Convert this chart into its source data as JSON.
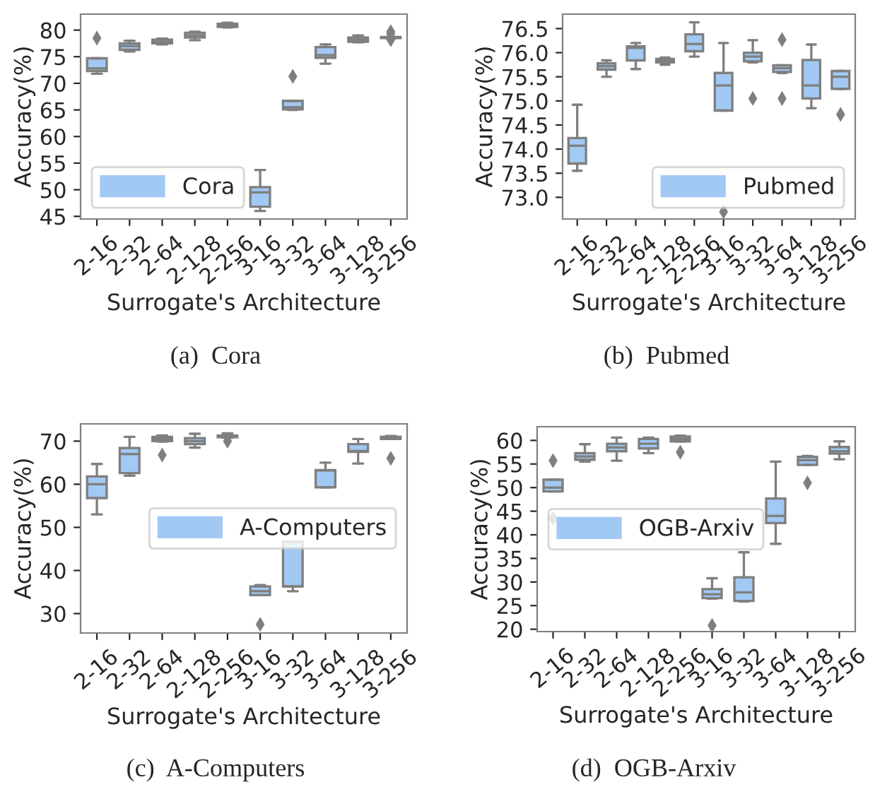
{
  "chart_data": [
    {
      "type": "box",
      "xlabel": "Surrogate's Architecture",
      "ylabel": "Accuracy(%)",
      "annotations": [
        "(a)  Cora"
      ],
      "categories": [
        "2-16",
        "2-32",
        "2-64",
        "2-128",
        "2-256",
        "3-16",
        "3-32",
        "3-64",
        "3-128",
        "3-256"
      ],
      "ylim": [
        44.5,
        83
      ],
      "yticks": [
        45,
        50,
        55,
        60,
        65,
        70,
        75,
        80
      ],
      "legend": "bottom left",
      "grid": false,
      "series": [
        {
          "name": "Cora",
          "color": "#a1c9f4",
          "boxes": [
            {
              "low": 71.8,
              "q1": 72.3,
              "median": 72.8,
              "q3": 74.7,
              "high": 74.7,
              "outliers": [
                78.5
              ]
            },
            {
              "low": 76.0,
              "q1": 76.3,
              "median": 77.0,
              "q3": 77.5,
              "high": 78.0
            },
            {
              "low": 77.3,
              "q1": 77.5,
              "median": 77.8,
              "q3": 78.2,
              "high": 78.4
            },
            {
              "low": 78.1,
              "q1": 78.6,
              "median": 79.0,
              "q3": 79.5,
              "high": 79.7
            },
            {
              "low": 80.5,
              "q1": 80.6,
              "median": 80.9,
              "q3": 81.2,
              "high": 81.4
            },
            {
              "low": 46.0,
              "q1": 46.8,
              "median": 49.5,
              "q3": 50.5,
              "high": 53.7
            },
            {
              "low": 65.0,
              "q1": 65.1,
              "median": 65.5,
              "q3": 66.7,
              "high": 66.7,
              "outliers": [
                71.3
              ]
            },
            {
              "low": 73.7,
              "q1": 74.8,
              "median": 75.3,
              "q3": 76.8,
              "high": 77.3
            },
            {
              "low": 77.7,
              "q1": 77.8,
              "median": 78.2,
              "q3": 78.6,
              "high": 79.0
            },
            {
              "low": 78.5,
              "q1": 78.5,
              "median": 78.6,
              "q3": 78.7,
              "high": 78.7,
              "outliers": [
                78.2,
                79.3,
                79.7
              ]
            }
          ]
        }
      ]
    },
    {
      "type": "box",
      "xlabel": "Surrogate's Architecture",
      "ylabel": "Accuracy(%)",
      "annotations": [
        "(b)  Pubmed"
      ],
      "categories": [
        "2-16",
        "2-32",
        "2-64",
        "2-128",
        "2-256",
        "3-16",
        "3-32",
        "3-64",
        "3-128",
        "3-256"
      ],
      "ylim": [
        72.55,
        76.8
      ],
      "yticks": [
        {
          "value": 73.0,
          "label": "73.0"
        },
        {
          "value": 73.5,
          "label": "73.5"
        },
        {
          "value": 74.0,
          "label": "74.0"
        },
        {
          "value": 74.5,
          "label": "74.5"
        },
        {
          "value": 75.0,
          "label": "75.0"
        },
        {
          "value": 75.5,
          "label": "75.5"
        },
        {
          "value": 76.0,
          "label": "76.0"
        },
        {
          "value": 76.5,
          "label": "76.5"
        }
      ],
      "legend": "bottom right",
      "grid": false,
      "series": [
        {
          "name": "Pubmed",
          "color": "#a1c9f4",
          "boxes": [
            {
              "low": 73.55,
              "q1": 73.7,
              "median": 74.07,
              "q3": 74.23,
              "high": 74.92
            },
            {
              "low": 75.5,
              "q1": 75.65,
              "median": 75.72,
              "q3": 75.78,
              "high": 75.84
            },
            {
              "low": 75.66,
              "q1": 75.84,
              "median": 76.1,
              "q3": 76.13,
              "high": 76.2
            },
            {
              "low": 75.75,
              "q1": 75.8,
              "median": 75.83,
              "q3": 75.87,
              "high": 75.9
            },
            {
              "low": 75.92,
              "q1": 76.03,
              "median": 76.18,
              "q3": 76.38,
              "high": 76.63
            },
            {
              "low": 74.8,
              "q1": 74.8,
              "median": 75.32,
              "q3": 75.58,
              "high": 76.2,
              "outliers": [
                72.7
              ]
            },
            {
              "low": 75.8,
              "q1": 75.82,
              "median": 75.92,
              "q3": 76.0,
              "high": 76.26,
              "outliers": [
                75.05
              ]
            },
            {
              "low": 75.58,
              "q1": 75.6,
              "median": 75.68,
              "q3": 75.74,
              "high": 75.74,
              "outliers": [
                76.27,
                75.05
              ]
            },
            {
              "low": 74.85,
              "q1": 75.05,
              "median": 75.32,
              "q3": 75.85,
              "high": 76.17
            },
            {
              "low": 75.25,
              "q1": 75.25,
              "median": 75.5,
              "q3": 75.62,
              "high": 75.62,
              "outliers": [
                74.72
              ]
            }
          ]
        }
      ]
    },
    {
      "type": "box",
      "xlabel": "Surrogate's Architecture",
      "ylabel": "Accuracy(%)",
      "annotations": [
        "(c)  A-Computers"
      ],
      "categories": [
        "2-16",
        "2-32",
        "2-64",
        "2-128",
        "2-256",
        "3-16",
        "3-32",
        "3-64",
        "3-128",
        "3-256"
      ],
      "ylim": [
        25.5,
        74
      ],
      "yticks": [
        30,
        40,
        50,
        60,
        70
      ],
      "legend": "right",
      "grid": false,
      "series": [
        {
          "name": "A-Computers",
          "color": "#a1c9f4",
          "boxes": [
            {
              "low": 53.0,
              "q1": 56.8,
              "median": 60.0,
              "q3": 61.8,
              "high": 64.7
            },
            {
              "low": 62.0,
              "q1": 62.6,
              "median": 67.0,
              "q3": 68.4,
              "high": 71.0
            },
            {
              "low": 69.9,
              "q1": 70.0,
              "median": 70.5,
              "q3": 71.0,
              "high": 71.3,
              "outliers": [
                66.8
              ]
            },
            {
              "low": 68.5,
              "q1": 69.3,
              "median": 70.0,
              "q3": 70.7,
              "high": 71.7
            },
            {
              "low": 70.8,
              "q1": 70.9,
              "median": 71.2,
              "q3": 71.3,
              "high": 71.8,
              "outliers": [
                70.0
              ]
            },
            {
              "low": 34.3,
              "q1": 34.3,
              "median": 35.2,
              "q3": 36.3,
              "high": 36.6,
              "outliers": [
                27.5
              ]
            },
            {
              "low": 35.2,
              "q1": 36.3,
              "median": 36.3,
              "q3": 46.7,
              "high": 46.7
            },
            {
              "low": 59.3,
              "q1": 59.3,
              "median": 63.2,
              "q3": 63.3,
              "high": 65.0
            },
            {
              "low": 64.8,
              "q1": 67.5,
              "median": 67.7,
              "q3": 69.3,
              "high": 70.5
            },
            {
              "low": 70.5,
              "q1": 70.5,
              "median": 70.8,
              "q3": 71.0,
              "high": 71.2,
              "outliers": [
                66.0
              ]
            }
          ]
        }
      ]
    },
    {
      "type": "box",
      "xlabel": "Surrogate's Architecture",
      "ylabel": "Accuracy(%)",
      "annotations": [
        "(d)  OGB-Arxiv"
      ],
      "categories": [
        "2-16",
        "2-32",
        "2-64",
        "2-128",
        "2-256",
        "3-16",
        "3-32",
        "3-64",
        "3-128",
        "3-256"
      ],
      "ylim": [
        19.5,
        62.9
      ],
      "yticks": [
        20,
        25,
        30,
        35,
        40,
        45,
        50,
        55,
        60
      ],
      "legend": "left",
      "grid": false,
      "series": [
        {
          "name": "OGB-Arxiv",
          "color": "#a1c9f4",
          "boxes": [
            {
              "low": 49.2,
              "q1": 49.2,
              "median": 50.0,
              "q3": 51.7,
              "high": 51.7,
              "outliers": [
                55.7,
                43.5
              ]
            },
            {
              "low": 55.5,
              "q1": 55.9,
              "median": 56.6,
              "q3": 57.3,
              "high": 59.2
            },
            {
              "low": 55.7,
              "q1": 57.7,
              "median": 58.5,
              "q3": 59.3,
              "high": 60.6
            },
            {
              "low": 57.3,
              "q1": 58.3,
              "median": 59.3,
              "q3": 60.3,
              "high": 60.6
            },
            {
              "low": 59.8,
              "q1": 59.8,
              "median": 60.3,
              "q3": 60.8,
              "high": 61.0,
              "outliers": [
                57.5
              ]
            },
            {
              "low": 26.5,
              "q1": 26.6,
              "median": 27.4,
              "q3": 28.5,
              "high": 30.8,
              "outliers": [
                20.8
              ]
            },
            {
              "low": 25.9,
              "q1": 26.0,
              "median": 27.8,
              "q3": 31.0,
              "high": 36.3
            },
            {
              "low": 38.1,
              "q1": 42.5,
              "median": 44.0,
              "q3": 47.7,
              "high": 55.5
            },
            {
              "low": 54.8,
              "q1": 54.8,
              "median": 55.8,
              "q3": 56.5,
              "high": 56.7,
              "outliers": [
                51.0
              ]
            },
            {
              "low": 56.0,
              "q1": 57.2,
              "median": 57.7,
              "q3": 58.6,
              "high": 59.8
            }
          ]
        }
      ]
    }
  ]
}
